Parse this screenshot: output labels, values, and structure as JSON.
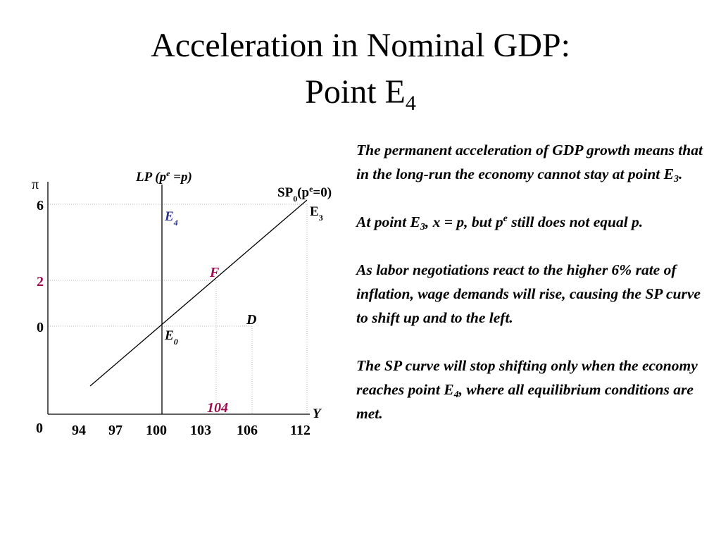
{
  "title": {
    "line1": "Acceleration in Nominal GDP:",
    "line2_base": "Point E",
    "line2_sub": "4"
  },
  "colors": {
    "e4_label": "#2e3192",
    "f_point": "#9e0b4f",
    "guide": "#b3b3b3",
    "ink": "#000000"
  },
  "diagram": {
    "y_axis_symbol": "π",
    "x_axis_symbol": "Y",
    "origin_label": "0",
    "y_ticks": [
      {
        "label": "6",
        "value": 6
      },
      {
        "label": "2",
        "value": 2,
        "highlight": true
      },
      {
        "label": "0",
        "value": 0
      }
    ],
    "x_ticks": [
      {
        "label": "94",
        "value": 94
      },
      {
        "label": "97",
        "value": 97
      },
      {
        "label": "100",
        "value": 100
      },
      {
        "label": "103",
        "value": 103
      },
      {
        "label": "106",
        "value": 106
      },
      {
        "label": "112",
        "value": 112
      }
    ],
    "x_highlight": {
      "label": "104",
      "value": 104
    },
    "lp_curve": {
      "text": "LP (p",
      "sup": "e",
      "text_end": " =p)",
      "y_value": 100
    },
    "sp_curve": {
      "text": "SP",
      "sub": "0",
      "text2": "(p",
      "sup": "e",
      "text_end": "=0)"
    },
    "points": {
      "e0": {
        "base": "E",
        "sub": "0",
        "y": 100,
        "pi": 0
      },
      "e3": {
        "base": "E",
        "sub": "3",
        "y": 112,
        "pi": 6
      },
      "e4": {
        "base": "E",
        "sub": "4",
        "y": 100,
        "pi": 6
      },
      "f": {
        "label": "F",
        "y": 104,
        "pi": 2
      },
      "d": {
        "label": "D",
        "y": 106,
        "pi": 0
      }
    }
  },
  "text": {
    "p1_a": "The permanent acceleration of GDP growth means that in the long-run the economy cannot stay at point E",
    "p1_sub": "3",
    "p1_b": ".",
    "p2_a": "At point E",
    "p2_sub": "3",
    "p2_b": ", x = p, but  p",
    "p2_sup": "e",
    "p2_c": " still does not equal p.",
    "p3": "As labor negotiations react to the higher 6% rate of inflation, wage demands will rise, causing the SP curve to shift up and to the left.",
    "p4_a": "The SP curve will stop shifting only when the economy reaches point E",
    "p4_sub": "4",
    "p4_b": ", where all equilibrium conditions are met."
  }
}
